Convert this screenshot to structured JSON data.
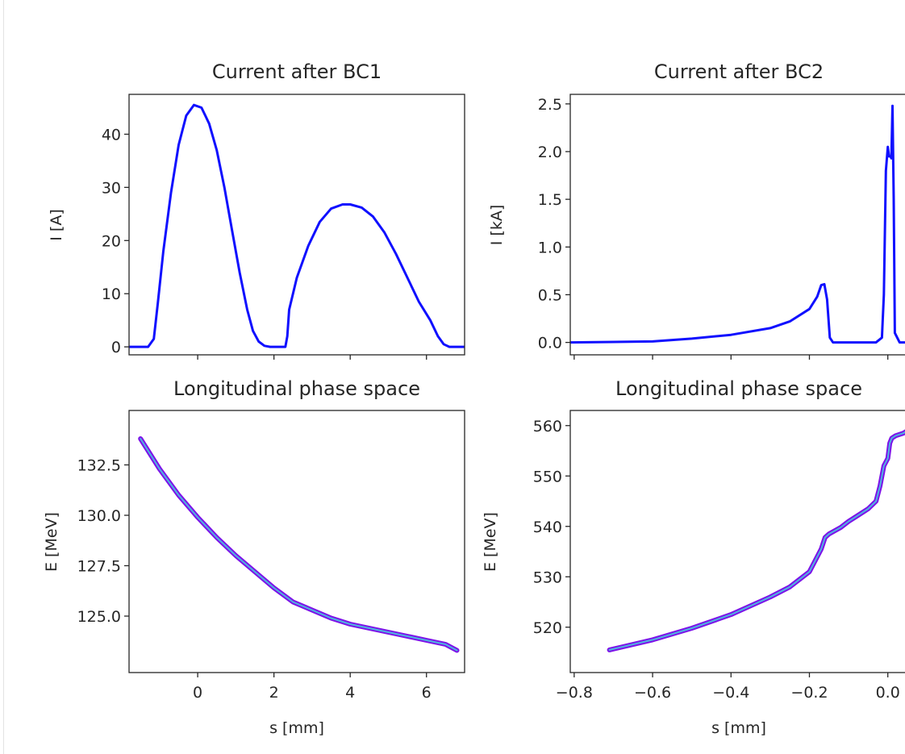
{
  "chart_data": [
    {
      "type": "line",
      "title": "Current after BC1",
      "xlabel": "",
      "ylabel": "I [A]",
      "ylim": [
        -1.5,
        47.5
      ],
      "xlim": [
        -1.8,
        7.0
      ],
      "yticks": [
        "0",
        "10",
        "20",
        "30",
        "40"
      ],
      "xticks": [
        "0",
        "2",
        "4",
        "6"
      ],
      "color": "#1010ff",
      "series": [
        {
          "x": [
            -1.8,
            -1.3,
            -1.15,
            -1.05,
            -0.9,
            -0.7,
            -0.5,
            -0.3,
            -0.1,
            0.1,
            0.3,
            0.5,
            0.7,
            0.9,
            1.1,
            1.3,
            1.45,
            1.6,
            1.75,
            1.9,
            2.2,
            2.3,
            2.35,
            2.4,
            2.6,
            2.9,
            3.2,
            3.5,
            3.8,
            4.0,
            4.3,
            4.6,
            4.9,
            5.2,
            5.5,
            5.8,
            6.1,
            6.3,
            6.45,
            6.6,
            6.8,
            7.0
          ],
          "y": [
            0,
            0,
            1.5,
            8,
            18,
            29,
            38,
            43.5,
            45.5,
            45,
            42,
            37,
            30,
            22,
            14,
            7,
            3,
            1,
            0.2,
            0,
            0,
            0,
            2,
            7,
            13,
            19,
            23.5,
            26,
            26.8,
            26.8,
            26.2,
            24.5,
            21.5,
            17.5,
            13,
            8.5,
            5,
            2,
            0.5,
            0,
            0,
            0
          ]
        }
      ]
    },
    {
      "type": "line",
      "title": "Current after BC2",
      "xlabel": "",
      "ylabel": "I [kA]",
      "ylim": [
        -0.13,
        2.6
      ],
      "xlim": [
        -0.81,
        0.05
      ],
      "yticks": [
        "0.0",
        "0.5",
        "1.0",
        "1.5",
        "2.0",
        "2.5"
      ],
      "color": "#1010ff",
      "series": [
        {
          "x": [
            -0.81,
            -0.6,
            -0.5,
            -0.4,
            -0.3,
            -0.25,
            -0.2,
            -0.18,
            -0.17,
            -0.162,
            -0.155,
            -0.148,
            -0.14,
            -0.1,
            -0.03,
            -0.015,
            -0.01,
            -0.005,
            0.0,
            0.003,
            0.007,
            0.009,
            0.012,
            0.015,
            0.018,
            0.03,
            0.05
          ],
          "y": [
            0,
            0.01,
            0.04,
            0.08,
            0.15,
            0.22,
            0.35,
            0.48,
            0.6,
            0.61,
            0.45,
            0.05,
            0,
            0,
            0,
            0.05,
            0.5,
            1.8,
            2.05,
            1.95,
            1.95,
            1.93,
            2.48,
            1.5,
            0.1,
            0,
            0
          ]
        }
      ]
    },
    {
      "type": "scatter",
      "title": "Longitudinal phase space",
      "xlabel": "s [mm]",
      "ylabel": "E [MeV]",
      "xlim": [
        -1.8,
        7.0
      ],
      "ylim": [
        122.2,
        135.2
      ],
      "xticks": [
        "0",
        "2",
        "4",
        "6"
      ],
      "yticks": [
        "125.0",
        "127.5",
        "130.0",
        "132.5"
      ],
      "colors": [
        "#7d12e8",
        "#4fb3e0"
      ],
      "series": [
        {
          "x": [
            -1.5,
            -1.0,
            -0.5,
            0.0,
            0.5,
            1.0,
            1.5,
            2.0,
            2.5,
            3.0,
            3.5,
            4.0,
            4.5,
            5.0,
            5.5,
            6.0,
            6.5,
            6.8
          ],
          "y": [
            133.8,
            132.3,
            131.0,
            129.9,
            128.9,
            128.0,
            127.2,
            126.4,
            125.7,
            125.3,
            124.9,
            124.6,
            124.4,
            124.2,
            124.0,
            123.8,
            123.6,
            123.3
          ]
        }
      ]
    },
    {
      "type": "scatter",
      "title": "Longitudinal phase space",
      "xlabel": "s [mm]",
      "ylabel": "E [MeV]",
      "xlim": [
        -0.81,
        0.05
      ],
      "ylim": [
        511,
        563
      ],
      "xticks": [
        "−0.8",
        "−0.6",
        "−0.4",
        "−0.2",
        "0.0"
      ],
      "yticks": [
        "520",
        "530",
        "540",
        "550",
        "560"
      ],
      "colors": [
        "#7d12e8",
        "#4fb3e0"
      ],
      "series": [
        {
          "x": [
            -0.71,
            -0.6,
            -0.5,
            -0.4,
            -0.3,
            -0.25,
            -0.2,
            -0.17,
            -0.16,
            -0.15,
            -0.12,
            -0.1,
            -0.08,
            -0.05,
            -0.03,
            -0.02,
            -0.01,
            0.0,
            0.005,
            0.01,
            0.02,
            0.04,
            0.05
          ],
          "y": [
            515.5,
            517.5,
            519.8,
            522.5,
            526.0,
            528.0,
            531.0,
            535.5,
            537.8,
            538.5,
            539.8,
            541.0,
            542.0,
            543.5,
            545.0,
            548.0,
            552.0,
            553.5,
            556.5,
            557.5,
            558.0,
            558.5,
            559.0
          ]
        }
      ]
    }
  ]
}
